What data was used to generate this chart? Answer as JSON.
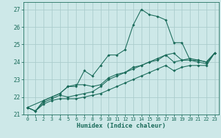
{
  "xlabel": "Humidex (Indice chaleur)",
  "xlim": [
    -0.5,
    23.5
  ],
  "ylim": [
    21,
    27.4
  ],
  "yticks": [
    21,
    22,
    23,
    24,
    25,
    26,
    27
  ],
  "xticks": [
    0,
    1,
    2,
    3,
    4,
    5,
    6,
    7,
    8,
    9,
    10,
    11,
    12,
    13,
    14,
    15,
    16,
    17,
    18,
    19,
    20,
    21,
    22,
    23
  ],
  "bg_color": "#cde8e8",
  "grid_color": "#aacccc",
  "line_color": "#1a6b5a",
  "line1_x": [
    0,
    1,
    2,
    3,
    4,
    5,
    6,
    7,
    8,
    9,
    10,
    11,
    12,
    13,
    14,
    15,
    16,
    17,
    18,
    19,
    20,
    21,
    22,
    23
  ],
  "line1_y": [
    21.4,
    21.2,
    21.8,
    22.0,
    22.2,
    22.6,
    22.6,
    23.5,
    23.2,
    23.8,
    24.4,
    24.4,
    24.7,
    26.1,
    27.0,
    26.7,
    26.6,
    26.4,
    25.1,
    25.1,
    24.1,
    24.1,
    24.0,
    24.5
  ],
  "line2_x": [
    0,
    2,
    3,
    4,
    5,
    6,
    7,
    8,
    9,
    10,
    11,
    12,
    13,
    14,
    15,
    16,
    17,
    18,
    19,
    20,
    21,
    22,
    23
  ],
  "line2_y": [
    21.4,
    21.8,
    22.0,
    22.2,
    22.6,
    22.7,
    22.7,
    22.6,
    22.7,
    23.1,
    23.3,
    23.4,
    23.7,
    23.8,
    24.0,
    24.1,
    24.4,
    24.5,
    24.1,
    24.2,
    24.1,
    24.0,
    24.5
  ],
  "line3_x": [
    0,
    1,
    2,
    3,
    4,
    5,
    6,
    7,
    8,
    9,
    10,
    11,
    12,
    13,
    14,
    15,
    16,
    17,
    18,
    19,
    20,
    21,
    22,
    23
  ],
  "line3_y": [
    21.4,
    21.2,
    21.7,
    21.9,
    22.1,
    22.0,
    22.1,
    22.2,
    22.3,
    22.6,
    23.0,
    23.2,
    23.4,
    23.6,
    23.8,
    24.0,
    24.2,
    24.4,
    24.0,
    24.1,
    24.1,
    24.0,
    23.9,
    24.5
  ],
  "line4_x": [
    0,
    1,
    2,
    3,
    4,
    5,
    6,
    7,
    8,
    9,
    10,
    11,
    12,
    13,
    14,
    15,
    16,
    17,
    18,
    19,
    20,
    21,
    22,
    23
  ],
  "line4_y": [
    21.4,
    21.2,
    21.6,
    21.8,
    21.9,
    21.9,
    21.9,
    22.0,
    22.1,
    22.2,
    22.4,
    22.6,
    22.8,
    23.0,
    23.2,
    23.4,
    23.6,
    23.8,
    23.5,
    23.7,
    23.8,
    23.8,
    23.8,
    24.5
  ]
}
